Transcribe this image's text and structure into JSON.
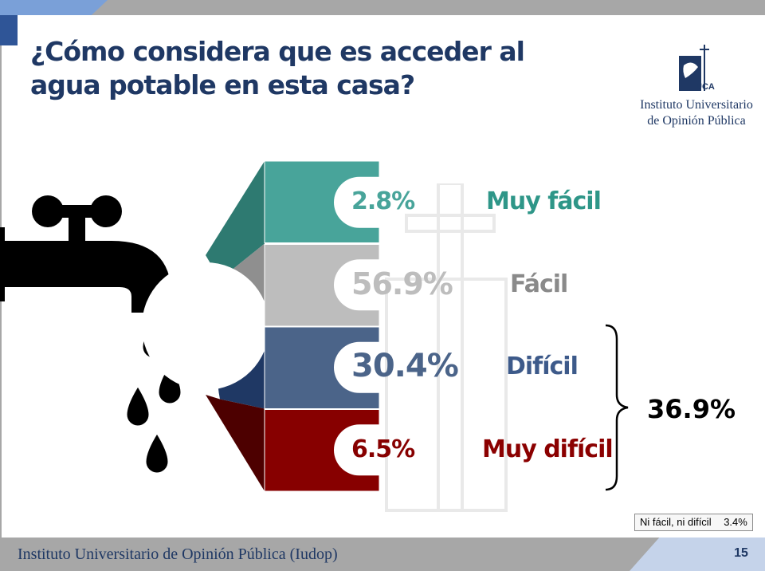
{
  "slide": {
    "title": "¿Cómo considera que es acceder al agua potable en esta casa?",
    "logo_line1": "Instituto Universitario",
    "logo_line2": "de Opinión Pública",
    "logo_mark_text": "UCA",
    "footer": "Instituto Universitario de Opinión Pública (Iudop)",
    "page_number": "15",
    "note_label": "Ni fácil, ni difícil",
    "note_value": "3.4%"
  },
  "chart_data": {
    "type": "bar",
    "categories": [
      "Muy fácil",
      "Fácil",
      "Difícil",
      "Muy difícil"
    ],
    "values": [
      2.8,
      56.9,
      30.4,
      6.5
    ],
    "value_labels": [
      "2.8%",
      "56.9%",
      "30.4%",
      "6.5%"
    ],
    "colors": [
      "#48a49a",
      "#bdbdbd",
      "#4b6489",
      "#870000"
    ],
    "side_colors": [
      "#2e7a71",
      "#8f8f8f",
      "#1f3864",
      "#4d0000"
    ],
    "label_colors": [
      "#2e9688",
      "#8a8a8a",
      "#3d5a8a",
      "#8b0000"
    ],
    "grouped_total": {
      "categories": [
        "Difícil",
        "Muy difícil"
      ],
      "label": "36.9%",
      "value": 36.9
    }
  }
}
